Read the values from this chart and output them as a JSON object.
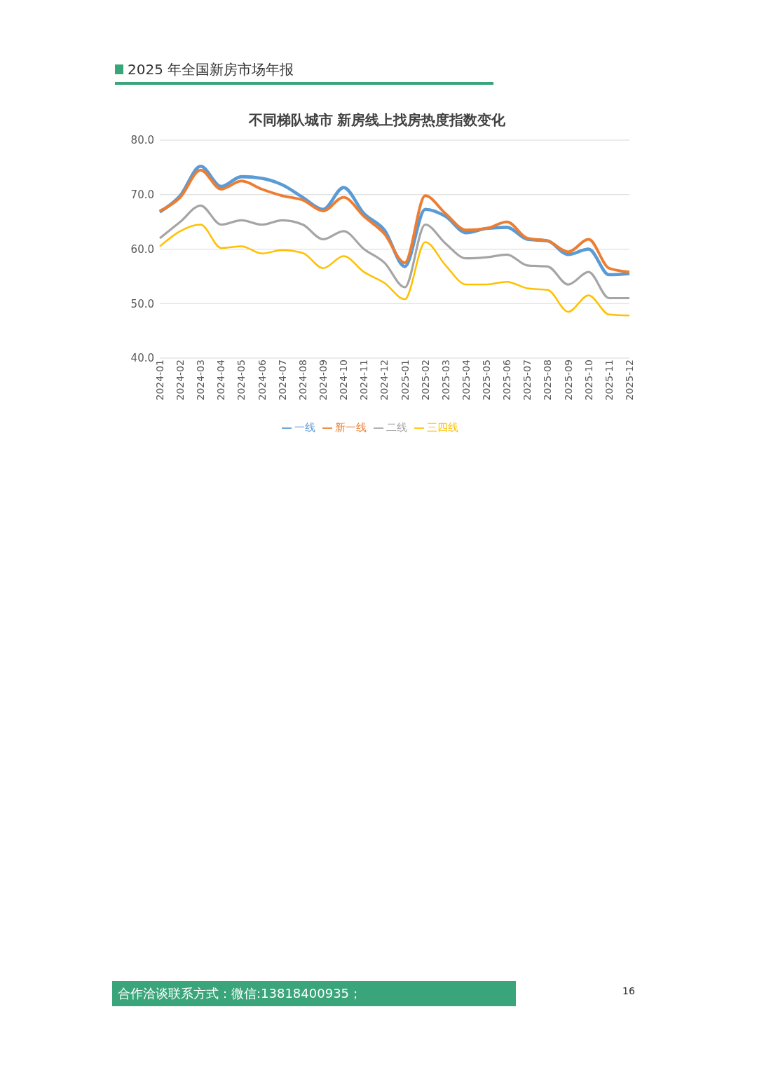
{
  "chart_data": {
    "type": "line",
    "title": "不同梯队城市 新房线上找房热度指数变化",
    "annotations": [
      "2025 年全国新房市场年报",
      "合作洽谈联系方式：微信:13818400935；",
      "16"
    ],
    "categories": [
      "2024-01",
      "2024-02",
      "2024-03",
      "2024-04",
      "2024-05",
      "2024-06",
      "2024-07",
      "2024-08",
      "2024-09",
      "2024-10",
      "2024-11",
      "2024-12",
      "2025-01",
      "2025-02",
      "2025-03",
      "2025-04",
      "2025-05",
      "2025-06",
      "2025-07",
      "2025-08",
      "2025-09",
      "2025-10",
      "2025-11",
      "2025-12"
    ],
    "series": [
      {
        "name": "一线",
        "color": "#5b9bd5",
        "values": [
          66.8,
          69.8,
          75.2,
          71.5,
          73.3,
          73.0,
          71.8,
          69.5,
          67.3,
          71.3,
          66.5,
          63.5,
          56.8,
          67.3,
          66.0,
          63.0,
          63.8,
          64.0,
          61.8,
          61.5,
          59.0,
          60.0,
          55.3,
          55.5
        ]
      },
      {
        "name": "新一线",
        "color": "#ed7d31",
        "values": [
          67.0,
          69.5,
          74.5,
          71.0,
          72.5,
          71.0,
          69.8,
          69.0,
          67.0,
          69.5,
          66.0,
          62.8,
          57.5,
          69.8,
          66.5,
          63.5,
          63.8,
          65.0,
          62.0,
          61.5,
          59.5,
          61.8,
          56.5,
          55.8
        ]
      },
      {
        "name": "二线",
        "color": "#a5a5a5",
        "values": [
          62.0,
          65.0,
          68.0,
          64.5,
          65.3,
          64.5,
          65.3,
          64.5,
          61.8,
          63.3,
          60.0,
          57.5,
          53.0,
          64.5,
          61.0,
          58.3,
          58.5,
          59.0,
          57.0,
          56.8,
          53.5,
          55.8,
          51.0,
          51.0
        ]
      },
      {
        "name": "三四线",
        "color": "#ffc000",
        "values": [
          60.5,
          63.3,
          64.5,
          60.2,
          60.5,
          59.2,
          59.8,
          59.3,
          56.5,
          58.7,
          55.8,
          53.8,
          50.8,
          61.3,
          57.0,
          53.5,
          53.5,
          54.0,
          52.8,
          52.5,
          48.5,
          51.5,
          48.0,
          47.8
        ]
      }
    ],
    "ylim": [
      40,
      80
    ],
    "yticks": [
      {
        "value": 40,
        "label": "40.0"
      },
      {
        "value": 50,
        "label": "50.0"
      },
      {
        "value": 60,
        "label": "60.0"
      },
      {
        "value": 70,
        "label": "70.0"
      },
      {
        "value": 80,
        "label": "80.0"
      }
    ],
    "grid": "y",
    "legend": "bottom",
    "marker": "none",
    "line_style": "solid"
  }
}
